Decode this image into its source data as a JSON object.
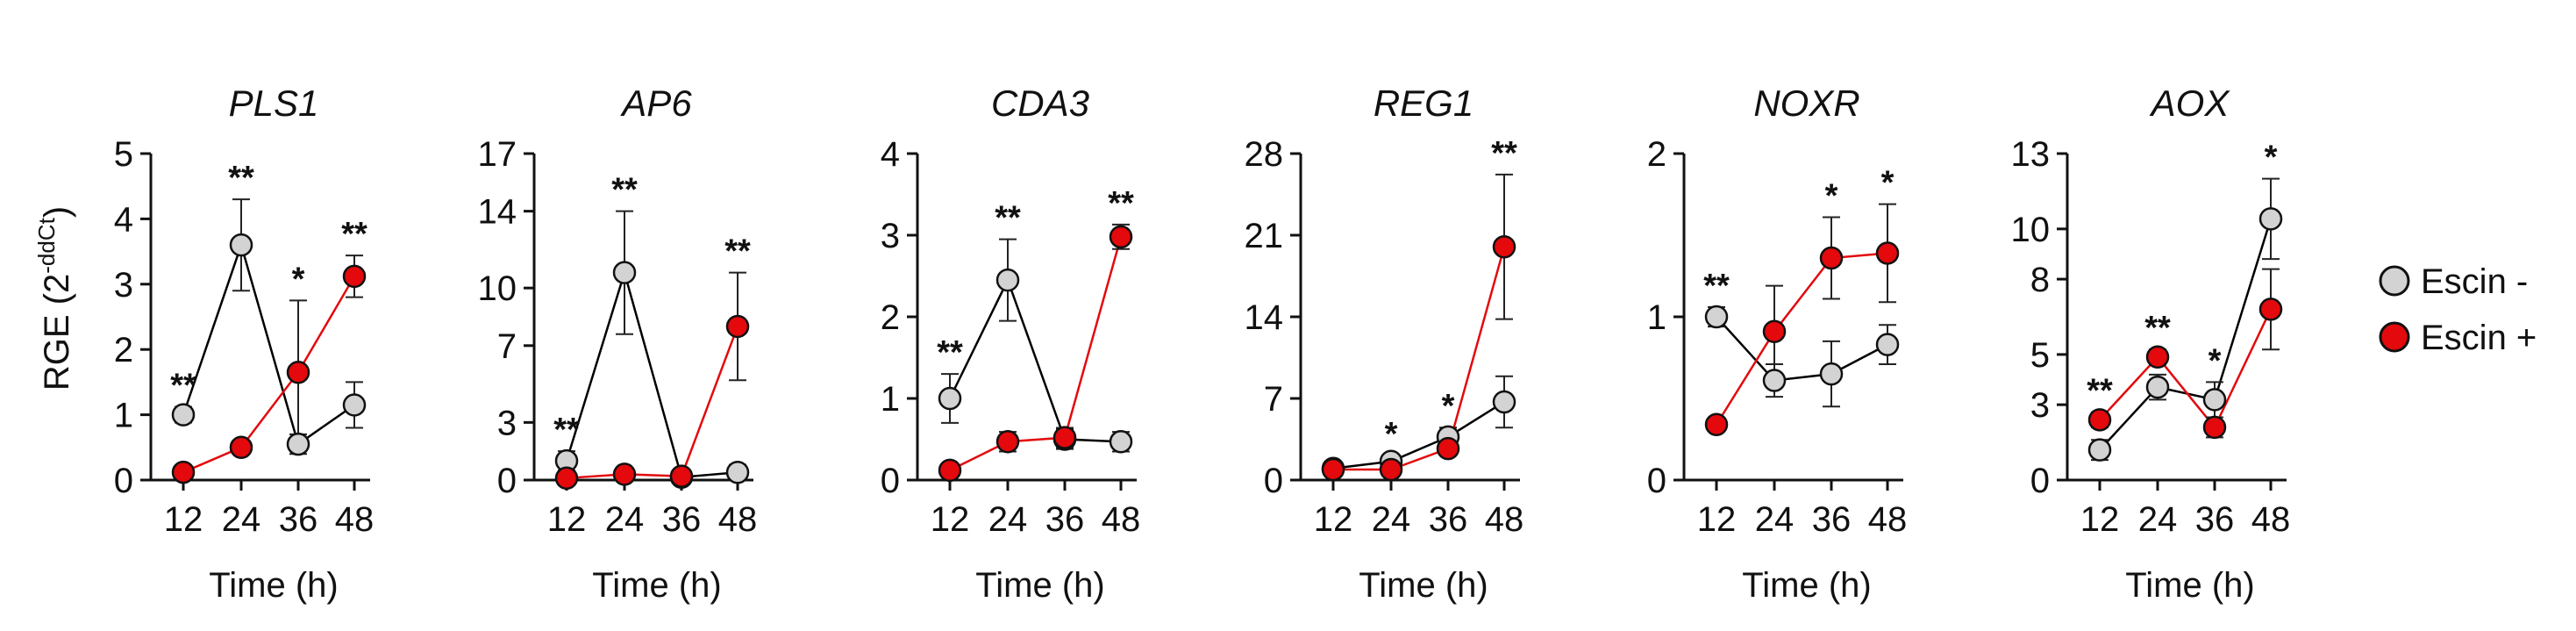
{
  "chart_data": {
    "type": "line",
    "y_axis_label": "RGE (2",
    "y_axis_label_superscript": "-ddCt",
    "y_axis_label_close": ")",
    "x_axis_label": "Time (h)",
    "x": [
      12,
      24,
      36,
      48
    ],
    "legend": [
      {
        "name": "Escin -",
        "color": "#d3d3d3"
      },
      {
        "name": "Escin +",
        "color": "#e3090c"
      }
    ],
    "line_colors": {
      "Escin -": "#000000",
      "Escin +": "#e3090c"
    },
    "panels": [
      {
        "title": "PLS1",
        "ylim": [
          0,
          5
        ],
        "yticks": [
          0,
          1,
          2,
          3,
          4,
          5
        ],
        "series": [
          {
            "name": "Escin -",
            "values": [
              1.0,
              3.6,
              0.55,
              1.15
            ],
            "err": [
              0.12,
              0.7,
              0.15,
              0.35
            ]
          },
          {
            "name": "Escin +",
            "values": [
              0.12,
              0.5,
              1.65,
              3.12
            ],
            "err": [
              0.05,
              0.08,
              1.1,
              0.32
            ]
          }
        ],
        "significance": [
          "**",
          "**",
          "*",
          "**"
        ]
      },
      {
        "title": "AP6",
        "ylim": [
          0,
          17
        ],
        "yticks": [
          0,
          3,
          7,
          10,
          14,
          17
        ],
        "series": [
          {
            "name": "Escin -",
            "values": [
              1.0,
              10.8,
              0.15,
              0.4
            ],
            "err": [
              0.5,
              3.2,
              0.1,
              0.4
            ]
          },
          {
            "name": "Escin +",
            "values": [
              0.1,
              0.3,
              0.2,
              8.0
            ],
            "err": [
              0.05,
              0.2,
              0.1,
              2.8
            ]
          }
        ],
        "significance": [
          "**",
          "**",
          "",
          "**"
        ]
      },
      {
        "title": "CDA3",
        "ylim": [
          0,
          4
        ],
        "yticks": [
          0,
          1,
          2,
          3,
          4
        ],
        "series": [
          {
            "name": "Escin -",
            "values": [
              1.0,
              2.45,
              0.5,
              0.47
            ],
            "err": [
              0.3,
              0.5,
              0.12,
              0.12
            ]
          },
          {
            "name": "Escin +",
            "values": [
              0.12,
              0.47,
              0.52,
              2.98
            ],
            "err": [
              0.05,
              0.12,
              0.12,
              0.15
            ]
          }
        ],
        "significance": [
          "**",
          "**",
          "",
          "**"
        ]
      },
      {
        "title": "REG1",
        "ylim": [
          0,
          28
        ],
        "yticks": [
          0,
          7,
          14,
          21,
          28
        ],
        "series": [
          {
            "name": "Escin -",
            "values": [
              1.0,
              1.6,
              3.7,
              6.7
            ],
            "err": [
              0.4,
              0.5,
              0.8,
              2.2
            ]
          },
          {
            "name": "Escin +",
            "values": [
              0.9,
              0.9,
              2.7,
              20.0
            ],
            "err": [
              0.3,
              0.3,
              0.6,
              6.2
            ]
          }
        ],
        "significance": [
          "",
          "*",
          "*",
          "**"
        ]
      },
      {
        "title": "NOXR",
        "ylim": [
          0,
          2
        ],
        "yticks": [
          0,
          1,
          2
        ],
        "series": [
          {
            "name": "Escin -",
            "values": [
              1.0,
              0.61,
              0.65,
              0.83
            ],
            "err": [
              0.06,
              0.1,
              0.2,
              0.12
            ]
          },
          {
            "name": "Escin +",
            "values": [
              0.34,
              0.91,
              1.36,
              1.39
            ],
            "err": [
              0.04,
              0.28,
              0.25,
              0.3
            ]
          }
        ],
        "significance": [
          "**",
          "",
          "*",
          "*"
        ]
      },
      {
        "title": "AOX",
        "ylim": [
          0,
          13
        ],
        "yticks": [
          0,
          3,
          5,
          8,
          10,
          13
        ],
        "ytick_labels": [
          "0",
          "3",
          "5",
          "8",
          "10",
          "13"
        ],
        "series": [
          {
            "name": "Escin -",
            "values": [
              1.2,
              3.7,
              3.2,
              10.4
            ],
            "err": [
              0.4,
              0.5,
              0.7,
              1.6
            ]
          },
          {
            "name": "Escin +",
            "values": [
              2.4,
              4.9,
              2.1,
              6.8
            ],
            "err": [
              0.3,
              0.3,
              0.4,
              1.6
            ]
          }
        ],
        "significance": [
          "**",
          "**",
          "*",
          "*"
        ]
      }
    ],
    "grid": false,
    "legend_position": "right"
  }
}
